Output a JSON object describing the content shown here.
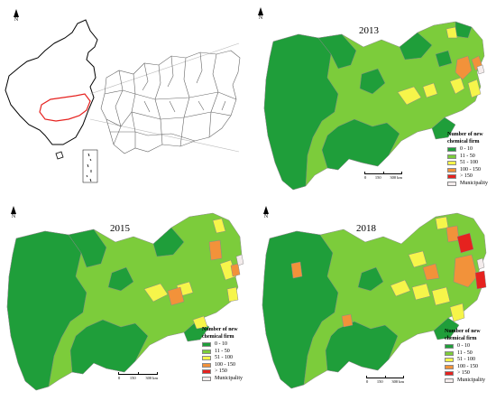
{
  "colors": {
    "c0_10": "#1f9e3a",
    "c11_50": "#7ccc3b",
    "c51_100": "#f6f54a",
    "c100_150": "#f2923a",
    "c150": "#e6221f",
    "municipality": "#f4ecec",
    "outline": "#8a8a8a"
  },
  "locator": {
    "north": "N",
    "description": "China outline with red highlighted study region and gray municipal boundary inset"
  },
  "legend": {
    "title_line1": "Number of new",
    "title_line2": "chemical firm",
    "items": [
      {
        "label": "0 - 10",
        "color": "#1f9e3a"
      },
      {
        "label": "11 - 50",
        "color": "#7ccc3b"
      },
      {
        "label": "51 - 100",
        "color": "#f6f54a"
      },
      {
        "label": "100 - 150",
        "color": "#f2923a"
      },
      {
        "label": "> 150",
        "color": "#e6221f"
      },
      {
        "label": "Municipality",
        "color": "#f4ecec"
      }
    ]
  },
  "scale": {
    "t0": "0",
    "t1": "150",
    "t2": "300 km"
  },
  "maps": [
    {
      "year": "2013",
      "north": "N"
    },
    {
      "year": "2015",
      "north": "N"
    },
    {
      "year": "2018",
      "north": "N"
    }
  ]
}
